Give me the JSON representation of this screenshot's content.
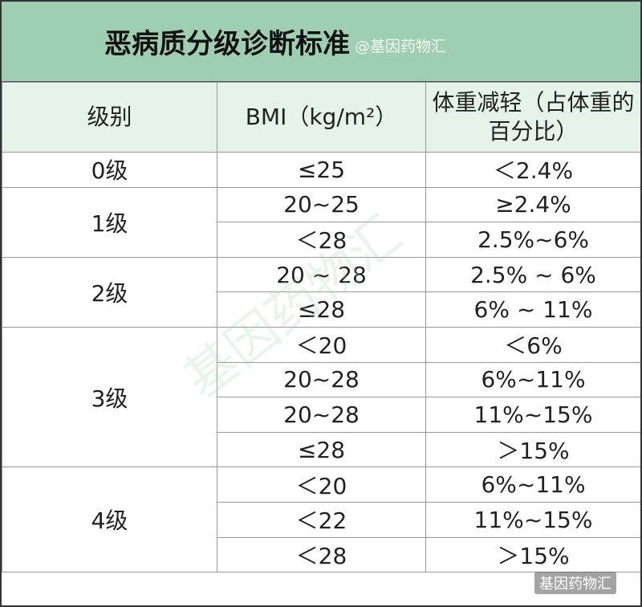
{
  "header": {
    "title": "恶病质分级诊断标准",
    "watermark": "@基因药物汇"
  },
  "table": {
    "columns": [
      "级别",
      "BMI（kg/m²）",
      "体重减轻（占体重的百分比）"
    ],
    "groups": [
      {
        "grade": "0级",
        "rows": [
          [
            "≤25",
            "＜2.4%"
          ]
        ]
      },
      {
        "grade": "1级",
        "rows": [
          [
            "20~25",
            "≥2.4%"
          ],
          [
            "＜28",
            "2.5%~6%"
          ]
        ]
      },
      {
        "grade": "2级",
        "rows": [
          [
            "20 ~ 28",
            "2.5% ~ 6%"
          ],
          [
            "≤28",
            "6% ~ 11%"
          ]
        ]
      },
      {
        "grade": "3级",
        "rows": [
          [
            "＜20",
            "＜6%"
          ],
          [
            "20~28",
            "6%~11%"
          ],
          [
            "20~28",
            "11%~15%"
          ],
          [
            "≤28",
            "＞15%"
          ]
        ]
      },
      {
        "grade": "4级",
        "rows": [
          [
            "＜20",
            "6%~11%"
          ],
          [
            "＜22",
            "11%~15%"
          ],
          [
            "＜28",
            "＞15%"
          ]
        ]
      }
    ]
  },
  "watermarks": {
    "center": "基因药物汇",
    "footer": "基因药物汇"
  }
}
